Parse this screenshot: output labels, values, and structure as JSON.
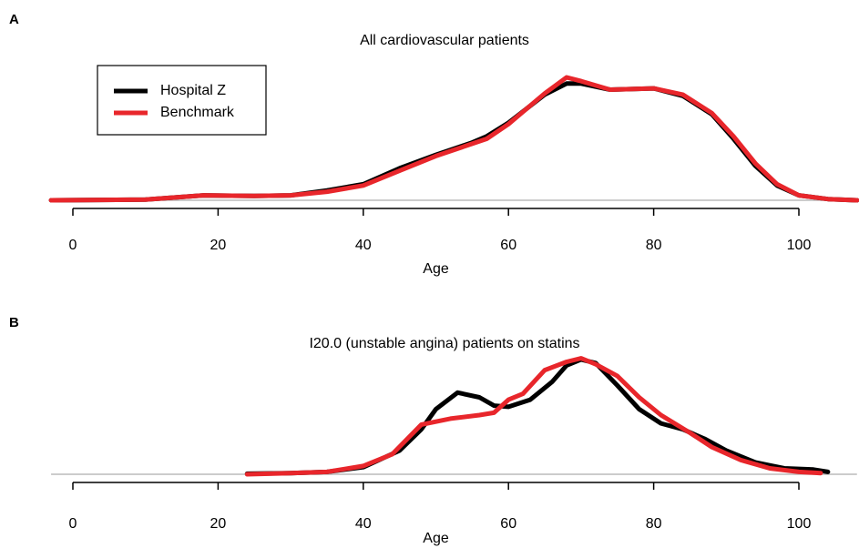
{
  "chart_data": [
    {
      "type": "line",
      "panel_label": "A",
      "title": "All cardiovascular patients",
      "x_label": "Age",
      "xlim": [
        -3,
        108
      ],
      "xticks": [
        0,
        20,
        40,
        60,
        80,
        100
      ],
      "ylim": [
        0,
        1.05
      ],
      "legend": "top-left",
      "series": [
        {
          "name": "Hospital Z",
          "color": "#000000",
          "x": [
            -3,
            10,
            18,
            25,
            30,
            35,
            40,
            45,
            50,
            55,
            57,
            60,
            65,
            68,
            70,
            74,
            80,
            84,
            88,
            91,
            94,
            97,
            100,
            104,
            108
          ],
          "values": [
            0,
            0.005,
            0.04,
            0.035,
            0.04,
            0.08,
            0.13,
            0.26,
            0.37,
            0.47,
            0.52,
            0.63,
            0.86,
            0.95,
            0.95,
            0.9,
            0.91,
            0.85,
            0.7,
            0.5,
            0.28,
            0.12,
            0.04,
            0.01,
            0
          ]
        },
        {
          "name": "Benchmark",
          "color": "#e8262b",
          "x": [
            -3,
            10,
            18,
            25,
            30,
            35,
            40,
            45,
            50,
            55,
            57,
            60,
            65,
            68,
            70,
            74,
            80,
            84,
            88,
            91,
            94,
            97,
            100,
            104,
            108
          ],
          "values": [
            0,
            0.005,
            0.04,
            0.035,
            0.04,
            0.07,
            0.12,
            0.24,
            0.36,
            0.46,
            0.5,
            0.62,
            0.87,
            1.0,
            0.97,
            0.9,
            0.91,
            0.86,
            0.71,
            0.52,
            0.3,
            0.13,
            0.04,
            0.01,
            0
          ]
        }
      ]
    },
    {
      "type": "line",
      "panel_label": "B",
      "title": "I20.0 (unstable angina) patients on statins",
      "x_label": "Age",
      "xlim": [
        -3,
        108
      ],
      "xticks": [
        0,
        20,
        40,
        60,
        80,
        100
      ],
      "ylim": [
        0,
        1.05
      ],
      "series": [
        {
          "color": "#000000",
          "x": [
            24,
            30,
            35,
            40,
            45,
            48,
            50,
            53,
            56,
            58,
            60,
            63,
            66,
            68,
            70,
            72,
            75,
            78,
            81,
            84,
            87,
            90,
            94,
            98,
            102,
            104
          ],
          "values": [
            0.005,
            0.01,
            0.02,
            0.06,
            0.2,
            0.38,
            0.55,
            0.69,
            0.65,
            0.58,
            0.57,
            0.63,
            0.78,
            0.92,
            0.97,
            0.94,
            0.75,
            0.55,
            0.43,
            0.38,
            0.3,
            0.2,
            0.1,
            0.05,
            0.04,
            0.02
          ]
        },
        {
          "color": "#e8262b",
          "x": [
            24,
            30,
            35,
            40,
            44,
            48,
            52,
            56,
            58,
            60,
            62,
            65,
            68,
            70,
            72,
            75,
            78,
            81,
            85,
            88,
            92,
            96,
            100,
            103
          ],
          "values": [
            0,
            0.01,
            0.02,
            0.07,
            0.17,
            0.42,
            0.47,
            0.5,
            0.52,
            0.63,
            0.68,
            0.88,
            0.95,
            0.98,
            0.93,
            0.83,
            0.65,
            0.5,
            0.35,
            0.23,
            0.12,
            0.05,
            0.02,
            0.01
          ]
        }
      ]
    }
  ]
}
